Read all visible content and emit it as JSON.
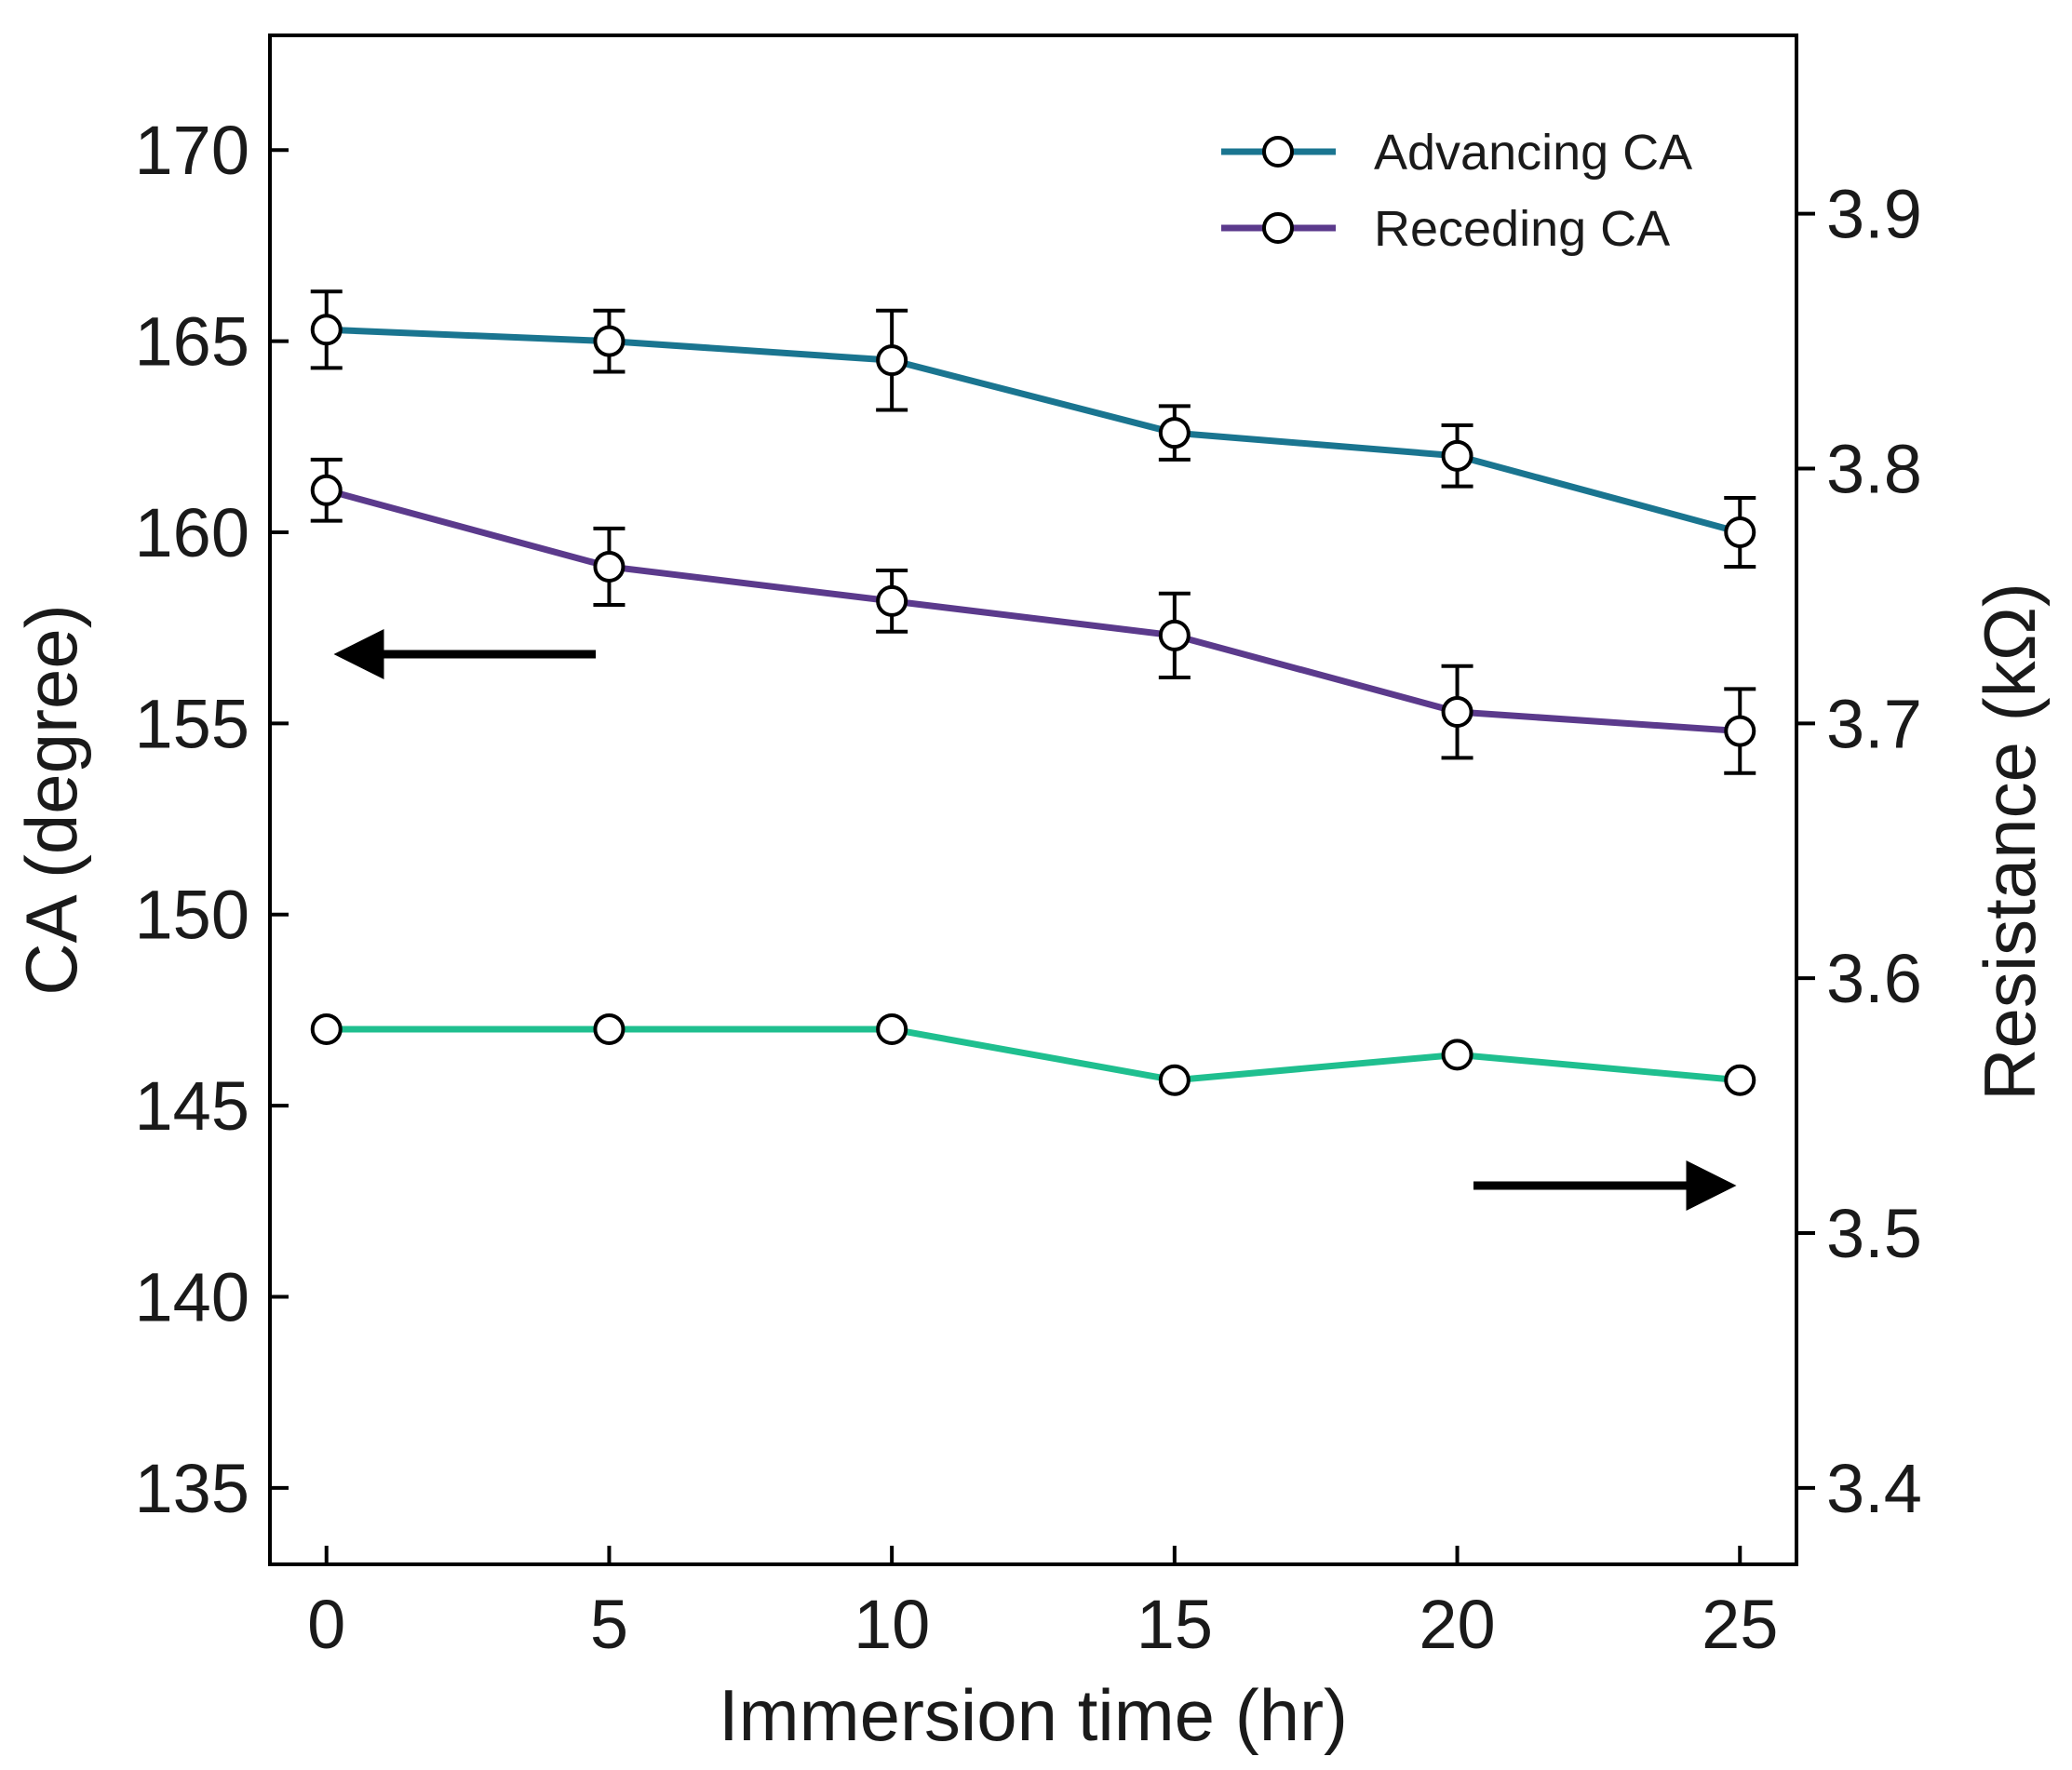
{
  "chart_data": {
    "type": "line",
    "x": [
      0,
      5,
      10,
      15,
      20,
      25
    ],
    "xlabel": "Immersion time (hr)",
    "ylabel_left": "CA (degree)",
    "ylabel_right": "Resistance (kΩ)",
    "xlim": [
      -1,
      26
    ],
    "ylim_left": [
      133,
      173
    ],
    "ylim_right": [
      3.37,
      3.97
    ],
    "xticks": [
      0,
      5,
      10,
      15,
      20,
      25
    ],
    "yticks_left": [
      135,
      140,
      145,
      150,
      155,
      160,
      165,
      170
    ],
    "yticks_right": [
      3.4,
      3.5,
      3.6,
      3.7,
      3.8,
      3.9
    ],
    "grid": false,
    "legend_position": "top-right",
    "series": [
      {
        "name": "Advancing CA",
        "axis": "left",
        "color": "#1a7590",
        "values": [
          165.3,
          165.0,
          164.5,
          162.6,
          162.0,
          160.0
        ],
        "errors": [
          1.0,
          0.8,
          1.3,
          0.7,
          0.8,
          0.9
        ]
      },
      {
        "name": "Receding CA",
        "axis": "left",
        "color": "#5b3a8c",
        "values": [
          161.1,
          159.1,
          158.2,
          157.3,
          155.3,
          154.8
        ],
        "errors": [
          0.8,
          1.0,
          0.8,
          1.1,
          1.2,
          1.1
        ]
      },
      {
        "name": "",
        "axis": "right",
        "color": "#1fbf8f",
        "values": [
          3.58,
          3.58,
          3.58,
          3.56,
          3.57,
          3.56
        ]
      }
    ],
    "annotations": [
      {
        "type": "arrow",
        "direction": "left",
        "points_to": "left axis"
      },
      {
        "type": "arrow",
        "direction": "right",
        "points_to": "right axis"
      }
    ]
  }
}
